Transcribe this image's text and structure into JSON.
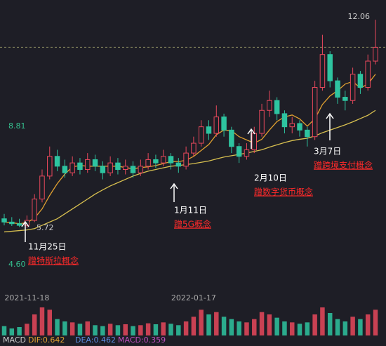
{
  "chart_data": {
    "type": "candlestick",
    "categories": [
      null,
      null,
      null,
      "2021-11-18",
      null,
      null,
      null,
      null,
      null,
      null,
      null,
      null,
      null,
      null,
      null,
      null,
      null,
      null,
      null,
      null,
      null,
      null,
      null,
      null,
      null,
      "2022-01-17",
      null,
      null,
      null,
      null,
      null,
      null,
      null,
      null,
      null,
      null,
      null,
      null,
      null,
      null,
      null,
      null,
      null,
      null,
      null,
      null,
      null,
      null,
      null,
      null
    ],
    "open": [
      6.0,
      5.9,
      5.85,
      5.8,
      5.95,
      6.6,
      7.3,
      7.9,
      7.6,
      7.4,
      7.7,
      7.5,
      7.8,
      7.6,
      7.4,
      7.7,
      7.5,
      7.6,
      7.4,
      7.6,
      7.8,
      7.7,
      7.9,
      7.7,
      7.6,
      8.0,
      8.3,
      8.8,
      8.6,
      9.1,
      8.7,
      8.2,
      7.9,
      8.1,
      8.6,
      9.3,
      9.6,
      9.2,
      8.8,
      8.9,
      8.7,
      8.5,
      10.0,
      11.0,
      10.2,
      9.7,
      9.6,
      10.4,
      10.0,
      10.8
    ],
    "high": [
      6.15,
      6.05,
      6.0,
      6.1,
      6.75,
      7.5,
      8.2,
      8.1,
      7.8,
      7.9,
      7.85,
      8.0,
      7.95,
      7.75,
      7.9,
      7.85,
      7.8,
      7.75,
      7.8,
      8.0,
      7.95,
      8.1,
      8.0,
      7.85,
      8.2,
      8.5,
      9.0,
      9.0,
      9.45,
      9.2,
      8.8,
      8.3,
      8.3,
      8.8,
      9.5,
      9.9,
      9.7,
      9.3,
      9.1,
      9.0,
      8.8,
      10.2,
      11.6,
      11.1,
      10.3,
      9.9,
      10.6,
      10.5,
      11.0,
      12.06
    ],
    "low": [
      5.8,
      5.78,
      5.75,
      5.72,
      5.9,
      6.5,
      7.2,
      7.45,
      7.25,
      7.3,
      7.35,
      7.4,
      7.45,
      7.2,
      7.3,
      7.35,
      7.35,
      7.25,
      7.3,
      7.5,
      7.55,
      7.6,
      7.5,
      7.4,
      7.5,
      7.9,
      8.2,
      8.4,
      8.5,
      8.5,
      8.0,
      7.7,
      7.8,
      8.0,
      8.5,
      9.1,
      9.0,
      8.6,
      8.6,
      8.5,
      8.2,
      8.4,
      9.9,
      10.0,
      9.5,
      9.3,
      9.5,
      9.8,
      9.9,
      10.7
    ],
    "close": [
      5.9,
      5.85,
      5.8,
      5.95,
      6.6,
      7.3,
      7.9,
      7.6,
      7.4,
      7.7,
      7.5,
      7.8,
      7.6,
      7.4,
      7.7,
      7.5,
      7.6,
      7.4,
      7.6,
      7.8,
      7.7,
      7.9,
      7.7,
      7.6,
      8.0,
      8.3,
      8.8,
      8.6,
      9.1,
      8.7,
      8.2,
      7.9,
      8.1,
      8.6,
      9.3,
      9.6,
      9.2,
      8.8,
      8.9,
      8.7,
      8.5,
      10.0,
      11.0,
      10.2,
      9.7,
      9.6,
      10.4,
      10.0,
      10.8,
      11.22
    ],
    "volume": [
      20,
      15,
      18,
      25,
      45,
      60,
      55,
      35,
      30,
      28,
      25,
      30,
      22,
      20,
      25,
      22,
      24,
      20,
      22,
      26,
      24,
      28,
      25,
      22,
      30,
      40,
      55,
      45,
      50,
      40,
      35,
      30,
      28,
      35,
      50,
      45,
      38,
      30,
      28,
      25,
      28,
      45,
      60,
      48,
      35,
      30,
      40,
      35,
      45,
      55
    ],
    "lines": [
      {
        "color": "#e0a030",
        "values": [
          5.9,
          5.88,
          5.85,
          5.88,
          6.02,
          6.3,
          6.71,
          7.07,
          7.36,
          7.58,
          7.62,
          7.6,
          7.6,
          7.6,
          7.6,
          7.6,
          7.56,
          7.52,
          7.56,
          7.58,
          7.62,
          7.68,
          7.74,
          7.74,
          7.78,
          7.9,
          8.08,
          8.26,
          8.56,
          8.7,
          8.68,
          8.5,
          8.4,
          8.3,
          8.42,
          8.7,
          8.96,
          9.1,
          9.16,
          9.04,
          8.82,
          9.04,
          9.48,
          9.74,
          9.9,
          10.1,
          10.18,
          9.98,
          10.1,
          10.4
        ]
      },
      {
        "color": "#d8c050",
        "values": [
          5.6,
          5.62,
          5.64,
          5.66,
          5.7,
          5.8,
          5.9,
          6.0,
          6.15,
          6.3,
          6.45,
          6.6,
          6.75,
          6.88,
          7.0,
          7.1,
          7.2,
          7.3,
          7.38,
          7.45,
          7.5,
          7.55,
          7.6,
          7.62,
          7.65,
          7.68,
          7.72,
          7.76,
          7.82,
          7.88,
          7.92,
          7.96,
          8.0,
          8.05,
          8.1,
          8.18,
          8.25,
          8.32,
          8.38,
          8.42,
          8.45,
          8.52,
          8.62,
          8.7,
          8.78,
          8.86,
          8.95,
          9.05,
          9.15,
          9.3
        ]
      }
    ],
    "up_color": "#e8485c",
    "down_color": "#2ec4a0",
    "ylim": [
      3.9,
      12.66
    ],
    "yticks": [
      8.81,
      {
        "value": 4.6,
        "label": "4.60"
      }
    ],
    "last_price": 11.22,
    "max_label": 12.06,
    "min_label": 5.72,
    "annotations": [
      {
        "date": "11月25日",
        "note": "蹭特斯拉概念"
      },
      {
        "date": "1月11日",
        "note": "蹭5G概念"
      },
      {
        "date": "2月10日",
        "note": "蹭数字货币概念"
      },
      {
        "date": "3月7日",
        "note": "蹭跨境支付概念"
      }
    ],
    "macd": {
      "title": "MACD",
      "dif": "DIF:0.642",
      "dea": "DEA:0.462",
      "macd": "MACD:0.359"
    }
  }
}
